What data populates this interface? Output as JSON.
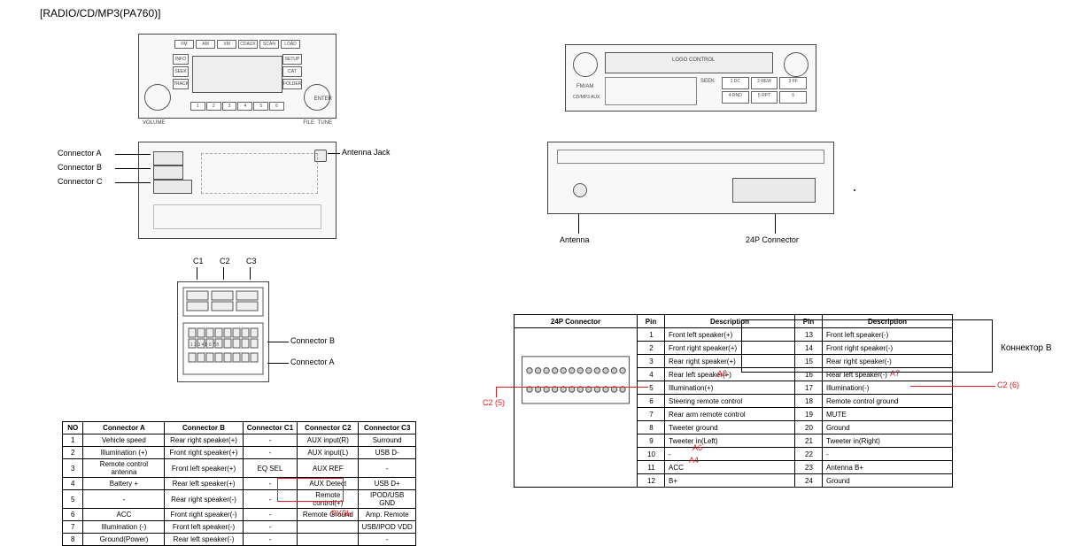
{
  "title": "[RADIO/CD/MP3(PA760)]",
  "left_unit_front": {
    "top_buttons": [
      "FM",
      "AM",
      "XM",
      "CDAUX",
      "SCAN",
      "LOAD"
    ],
    "side_left": [
      "INFO",
      "SEEK",
      "TRACK"
    ],
    "side_right": [
      "SETUP",
      "CAT",
      "FOLDER"
    ],
    "volume_label": "VOLUME",
    "file_label": "FILE",
    "tune_label": "TUNE",
    "enter_label": "ENTER",
    "preset_buttons": [
      "1",
      "2",
      "3",
      "4",
      "5",
      "6"
    ]
  },
  "left_unit_back": {
    "conn_a": "Connector A",
    "conn_b": "Connector B",
    "conn_c": "Connector C",
    "antenna": "Antenna Jack"
  },
  "connector_detail": {
    "c1": "C1",
    "c2": "C2",
    "c3": "C3",
    "cb": "Connector B",
    "ca": "Connector A"
  },
  "right_unit_front": {
    "top_label": "LOGO CONTROL",
    "band": "FM/AM",
    "cd_aux": "CD/MP3 AUX",
    "seek": "SEEK",
    "btns_row1": [
      "1 DC",
      "2 REW",
      "3 FF"
    ],
    "btns_row2": [
      "4 RND",
      "5 RPT",
      "6"
    ]
  },
  "right_unit_back": {
    "antenna": "Antenna",
    "connector": "24P Connector"
  },
  "left_table": {
    "headers": [
      "NO",
      "Connector A",
      "Connector B",
      "Connector C1",
      "Connector C2",
      "Connector C3"
    ],
    "rows": [
      [
        "1",
        "Vehicle speed",
        "Rear right speaker(+)",
        "-",
        "AUX input(R)",
        "Surround"
      ],
      [
        "2",
        "Illumination (+)",
        "Front right speaker(+)",
        "-",
        "AUX input(L)",
        "USB D-"
      ],
      [
        "3",
        "Remote control antenna",
        "Front left speaker(+)",
        "EQ SEL",
        "AUX REF",
        "-"
      ],
      [
        "4",
        "Battery +",
        "Rear left speaker(+)",
        "-",
        "AUX Detect",
        "USB D+"
      ],
      [
        "5",
        "-",
        "Rear right speaker(-)",
        "-",
        "Remote control(+)",
        "IPOD/USB GND"
      ],
      [
        "6",
        "ACC",
        "Front right speaker(-)",
        "-",
        "Remote Ground",
        "Amp. Remote"
      ],
      [
        "7",
        "Illumination (-)",
        "Front left speaker(-)",
        "-",
        "",
        "USB/IPOD VDD"
      ],
      [
        "8",
        "Ground(Power)",
        "Rear left speaker(-)",
        "-",
        "",
        "-"
      ]
    ],
    "rul_note": "РУЛЬ"
  },
  "right_table": {
    "header_24p": "24P Connector",
    "col_pin": "Pin",
    "col_desc": "Description",
    "rows": [
      [
        "1",
        "Front left speaker(+)",
        "13",
        "Front left speaker(-)"
      ],
      [
        "2",
        "Front right speaker(+)",
        "14",
        "Front right speaker(-)"
      ],
      [
        "3",
        "Rear right speaker(+)",
        "15",
        "Rear right speaker(-)"
      ],
      [
        "4",
        "Rear left speaker(+)",
        "16",
        "Rear left speaker(-)"
      ],
      [
        "5",
        "Illumination(+)",
        "17",
        "Illumination(-)"
      ],
      [
        "6",
        "Steering remote control",
        "18",
        "Remote control ground"
      ],
      [
        "7",
        "Rear arm remote control",
        "19",
        "MUTE"
      ],
      [
        "8",
        "Tweeter ground",
        "20",
        "Ground"
      ],
      [
        "9",
        "Tweeter in(Left)",
        "21",
        "Tweeter in(Right)"
      ],
      [
        "10",
        "-",
        "22",
        "-"
      ],
      [
        "11",
        "ACC",
        "23",
        "Antenna B+"
      ],
      [
        "12",
        "B+",
        "24",
        "Ground"
      ]
    ],
    "annot_a2": "A2",
    "annot_a7": "A7",
    "annot_a6": "A6",
    "annot_a4": "A4",
    "annot_c2_left": "C2 (5)",
    "annot_c2_right": "C2 (6)",
    "konnektor_b": "Коннектор B"
  },
  "colors": {
    "red": "#e31b23",
    "line": "#000"
  }
}
